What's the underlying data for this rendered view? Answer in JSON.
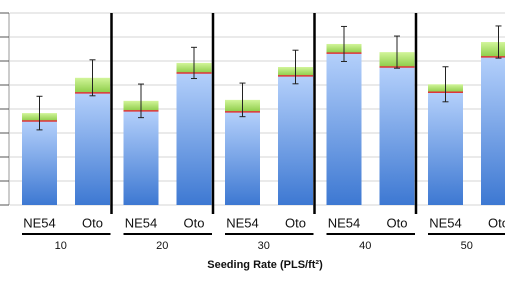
{
  "chart_data": {
    "type": "stacked-bar",
    "groups": [
      "10",
      "20",
      "30",
      "40",
      "50"
    ],
    "categories": [
      "NE54",
      "Oto",
      "NE54",
      "Oto",
      "NE54",
      "Oto",
      "NE54",
      "Oto",
      "NE54",
      "Oto"
    ],
    "x_label": "Seeding Rate (PLS/ft²)",
    "series": [
      {
        "color": "#4f8ee0",
        "values": [
          3.5,
          4.67,
          3.92,
          5.5,
          3.88,
          5.38,
          6.33,
          5.75,
          4.7,
          6.17
        ]
      },
      {
        "color": "#a8de6a",
        "values": [
          0.33,
          0.63,
          0.42,
          0.42,
          0.5,
          0.37,
          0.38,
          0.62,
          0.33,
          0.62
        ],
        "errors": [
          0.7,
          0.75,
          0.7,
          0.65,
          0.7,
          0.7,
          0.73,
          0.67,
          0.73,
          0.67
        ]
      }
    ],
    "ylim": [
      0,
      8
    ],
    "yticks": [
      0,
      1,
      2,
      3,
      4,
      5,
      6,
      7,
      8
    ],
    "grid": true
  }
}
